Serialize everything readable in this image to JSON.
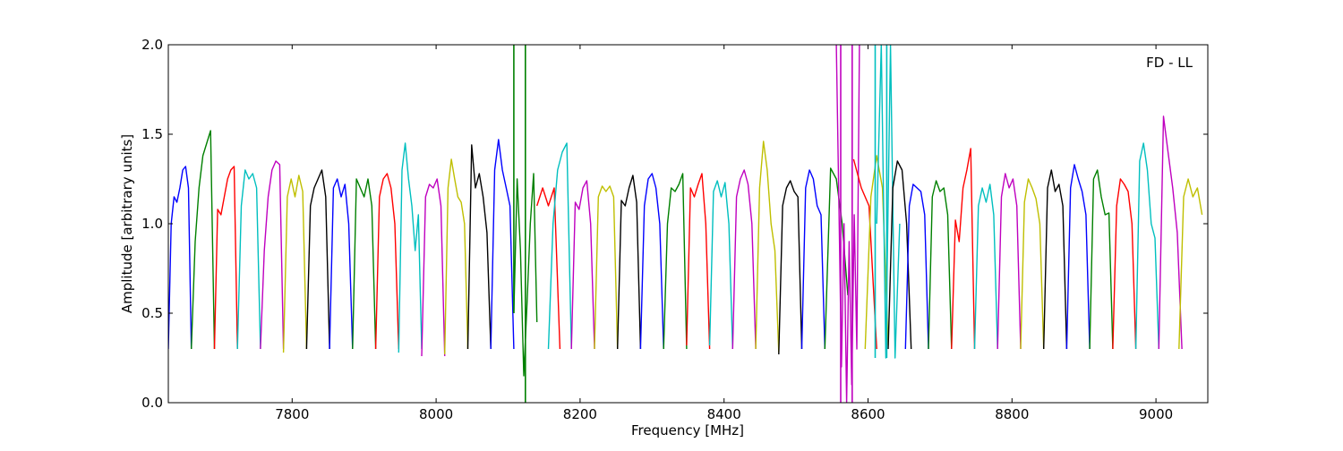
{
  "chart_data": {
    "type": "line",
    "title": "",
    "annotation": "FD - LL",
    "xlabel": "Frequency [MHz]",
    "ylabel": "Amplitude [arbitrary units]",
    "xlim": [
      7628,
      9072
    ],
    "ylim": [
      0.0,
      2.0
    ],
    "xticks": [
      7800,
      8000,
      8200,
      8400,
      8600,
      8800,
      9000
    ],
    "yticks": [
      0.0,
      0.5,
      1.0,
      1.5,
      2.0
    ],
    "xtick_labels": [
      "7800",
      "8000",
      "8200",
      "8400",
      "8600",
      "8800",
      "9000"
    ],
    "ytick_labels": [
      "0.0",
      "0.5",
      "1.0",
      "1.5",
      "2.0"
    ],
    "grid": false,
    "legend": "none",
    "color_cycle": [
      "#0000ff",
      "#008000",
      "#ff0000",
      "#00bfbf",
      "#bf00bf",
      "#bfbf00",
      "#000000"
    ],
    "channel_width_mhz": 32,
    "channels": [
      {
        "start": 7628,
        "color": "#0000ff",
        "values": [
          0.3,
          1.0,
          1.15,
          1.12,
          1.2,
          1.3,
          1.32,
          1.2,
          0.3
        ]
      },
      {
        "start": 7660,
        "color": "#008000",
        "values": [
          0.3,
          0.9,
          1.2,
          1.38,
          1.45,
          1.52,
          0.3
        ]
      },
      {
        "start": 7692,
        "color": "#ff0000",
        "values": [
          0.3,
          1.08,
          1.05,
          1.15,
          1.25,
          1.3,
          1.32,
          0.3
        ]
      },
      {
        "start": 7724,
        "color": "#00bfbf",
        "values": [
          0.3,
          1.1,
          1.3,
          1.25,
          1.28,
          1.2,
          0.3
        ]
      },
      {
        "start": 7756,
        "color": "#bf00bf",
        "values": [
          0.3,
          0.85,
          1.15,
          1.3,
          1.35,
          1.33,
          0.3
        ]
      },
      {
        "start": 7788,
        "color": "#bfbf00",
        "values": [
          0.28,
          1.15,
          1.25,
          1.15,
          1.27,
          1.18,
          0.3
        ]
      },
      {
        "start": 7820,
        "color": "#000000",
        "values": [
          0.3,
          1.1,
          1.2,
          1.25,
          1.3,
          1.15,
          0.3
        ]
      },
      {
        "start": 7852,
        "color": "#0000ff",
        "values": [
          0.3,
          1.2,
          1.25,
          1.15,
          1.22,
          1.0,
          0.3
        ]
      },
      {
        "start": 7884,
        "color": "#008000",
        "values": [
          0.3,
          1.25,
          1.2,
          1.15,
          1.25,
          1.1,
          0.3
        ]
      },
      {
        "start": 7916,
        "color": "#ff0000",
        "values": [
          0.3,
          1.15,
          1.25,
          1.28,
          1.2,
          1.0,
          0.3
        ]
      },
      {
        "start": 7948,
        "color": "#00bfbf",
        "values": [
          0.28,
          1.3,
          1.45,
          1.25,
          1.1,
          0.85,
          1.05,
          0.3
        ]
      },
      {
        "start": 7980,
        "color": "#bf00bf",
        "values": [
          0.26,
          1.15,
          1.22,
          1.2,
          1.25,
          1.1,
          0.26
        ]
      },
      {
        "start": 8012,
        "color": "#bfbf00",
        "values": [
          0.27,
          1.2,
          1.36,
          1.25,
          1.15,
          1.12,
          1.0,
          0.3
        ]
      },
      {
        "start": 8044,
        "color": "#000000",
        "values": [
          0.3,
          1.44,
          1.2,
          1.28,
          1.15,
          0.95,
          0.3
        ]
      },
      {
        "start": 8076,
        "color": "#0000ff",
        "values": [
          0.3,
          1.3,
          1.47,
          1.3,
          1.2,
          1.1,
          0.3
        ]
      },
      {
        "start": 8108,
        "color": "#008000",
        "values": [
          0.5,
          1.25,
          0.85,
          0.15,
          0.55,
          1.0,
          1.28,
          0.45
        ]
      },
      {
        "start": 8140,
        "color": "#ff0000",
        "values": [
          1.1,
          1.2,
          1.1,
          1.2,
          0.3
        ]
      },
      {
        "start": 8156,
        "color": "#00bfbf",
        "values": [
          0.3,
          1.0,
          1.3,
          1.4,
          1.45,
          0.3
        ]
      },
      {
        "start": 8188,
        "color": "#bf00bf",
        "values": [
          0.3,
          1.12,
          1.08,
          1.2,
          1.24,
          1.0,
          0.3
        ]
      },
      {
        "start": 8220,
        "color": "#bfbf00",
        "values": [
          0.3,
          1.15,
          1.21,
          1.18,
          1.21,
          1.15,
          0.3
        ]
      },
      {
        "start": 8252,
        "color": "#000000",
        "values": [
          0.3,
          1.13,
          1.1,
          1.2,
          1.27,
          1.12,
          0.3
        ]
      },
      {
        "start": 8284,
        "color": "#0000ff",
        "values": [
          0.3,
          1.1,
          1.25,
          1.28,
          1.2,
          1.0,
          0.3
        ]
      },
      {
        "start": 8316,
        "color": "#008000",
        "values": [
          0.3,
          1.0,
          1.2,
          1.18,
          1.22,
          1.28,
          0.3
        ]
      },
      {
        "start": 8348,
        "color": "#ff0000",
        "values": [
          0.32,
          1.2,
          1.15,
          1.22,
          1.28,
          1.0,
          0.3
        ]
      },
      {
        "start": 8380,
        "color": "#00bfbf",
        "values": [
          0.32,
          1.18,
          1.24,
          1.15,
          1.23,
          1.0,
          0.3
        ]
      },
      {
        "start": 8412,
        "color": "#bf00bf",
        "values": [
          0.3,
          1.15,
          1.25,
          1.3,
          1.22,
          1.0,
          0.3
        ]
      },
      {
        "start": 8444,
        "color": "#bfbf00",
        "values": [
          0.3,
          1.2,
          1.46,
          1.3,
          1.0,
          0.85,
          0.28
        ]
      },
      {
        "start": 8476,
        "color": "#000000",
        "values": [
          0.27,
          1.1,
          1.2,
          1.24,
          1.18,
          1.15,
          0.3
        ]
      },
      {
        "start": 8508,
        "color": "#0000ff",
        "values": [
          0.3,
          1.2,
          1.3,
          1.25,
          1.1,
          1.05,
          0.3
        ]
      },
      {
        "start": 8540,
        "color": "#008000",
        "values": [
          0.3,
          1.31,
          1.25,
          1.0,
          0.6
        ]
      },
      {
        "start": 8556,
        "color": "#bf00bf",
        "values": [
          2.0,
          1.1,
          0.2,
          1.0,
          0.0,
          0.9,
          0.1,
          1.05,
          0.3,
          2.0
        ]
      },
      {
        "start": 8580,
        "color": "#ff0000",
        "values": [
          1.36,
          1.2,
          1.1,
          0.3
        ]
      },
      {
        "start": 8596,
        "color": "#bfbf00",
        "values": [
          0.3,
          1.15,
          1.38,
          1.2,
          0.32
        ]
      },
      {
        "start": 8612,
        "color": "#00bfbf",
        "values": [
          1.0,
          2.0,
          0.25,
          2.0,
          0.25,
          1.0
        ]
      },
      {
        "start": 8628,
        "color": "#000000",
        "values": [
          0.3,
          1.2,
          1.35,
          1.3,
          1.0,
          0.3
        ]
      },
      {
        "start": 8652,
        "color": "#0000ff",
        "values": [
          0.3,
          1.1,
          1.22,
          1.2,
          1.18,
          1.05,
          0.3
        ]
      },
      {
        "start": 8684,
        "color": "#008000",
        "values": [
          0.3,
          1.15,
          1.24,
          1.18,
          1.2,
          1.05,
          0.3
        ]
      },
      {
        "start": 8716,
        "color": "#ff0000",
        "values": [
          0.3,
          1.02,
          0.9,
          1.2,
          1.3,
          1.42,
          0.3
        ]
      },
      {
        "start": 8748,
        "color": "#00bfbf",
        "values": [
          0.3,
          1.1,
          1.2,
          1.12,
          1.22,
          1.05,
          0.3
        ]
      },
      {
        "start": 8780,
        "color": "#bf00bf",
        "values": [
          0.3,
          1.15,
          1.28,
          1.2,
          1.25,
          1.1,
          0.3
        ]
      },
      {
        "start": 8812,
        "color": "#bfbf00",
        "values": [
          0.3,
          1.12,
          1.25,
          1.2,
          1.14,
          1.0,
          0.3
        ]
      },
      {
        "start": 8844,
        "color": "#000000",
        "values": [
          0.3,
          1.2,
          1.3,
          1.18,
          1.22,
          1.1,
          0.3
        ]
      },
      {
        "start": 8876,
        "color": "#0000ff",
        "values": [
          0.3,
          1.2,
          1.33,
          1.25,
          1.18,
          1.05,
          0.3
        ]
      },
      {
        "start": 8908,
        "color": "#008000",
        "values": [
          0.3,
          1.25,
          1.3,
          1.15,
          1.05,
          1.06,
          0.3
        ]
      },
      {
        "start": 8940,
        "color": "#ff0000",
        "values": [
          0.3,
          1.1,
          1.25,
          1.22,
          1.18,
          1.0,
          0.3
        ]
      },
      {
        "start": 8972,
        "color": "#00bfbf",
        "values": [
          0.3,
          1.35,
          1.45,
          1.3,
          1.0,
          0.92,
          0.3
        ]
      },
      {
        "start": 9004,
        "color": "#bf00bf",
        "values": [
          0.3,
          1.6,
          1.4,
          1.2,
          0.95,
          0.3
        ]
      },
      {
        "start": 9032,
        "color": "#bfbf00",
        "values": [
          0.3,
          1.15,
          1.25,
          1.15,
          1.2,
          1.05
        ]
      }
    ],
    "spikes": [
      {
        "x": 8108,
        "color": "#008000",
        "y_low": 0.5,
        "y_high": 2.0
      },
      {
        "x": 8124,
        "color": "#008000",
        "y_low": 0.0,
        "y_high": 2.0
      },
      {
        "x": 8562,
        "color": "#bf00bf",
        "y_low": 0.0,
        "y_high": 2.0
      },
      {
        "x": 8578,
        "color": "#bf00bf",
        "y_low": 0.0,
        "y_high": 2.0
      },
      {
        "x": 8610,
        "color": "#00bfbf",
        "y_low": 0.25,
        "y_high": 2.0
      },
      {
        "x": 8626,
        "color": "#00bfbf",
        "y_low": 0.25,
        "y_high": 2.0
      }
    ]
  }
}
